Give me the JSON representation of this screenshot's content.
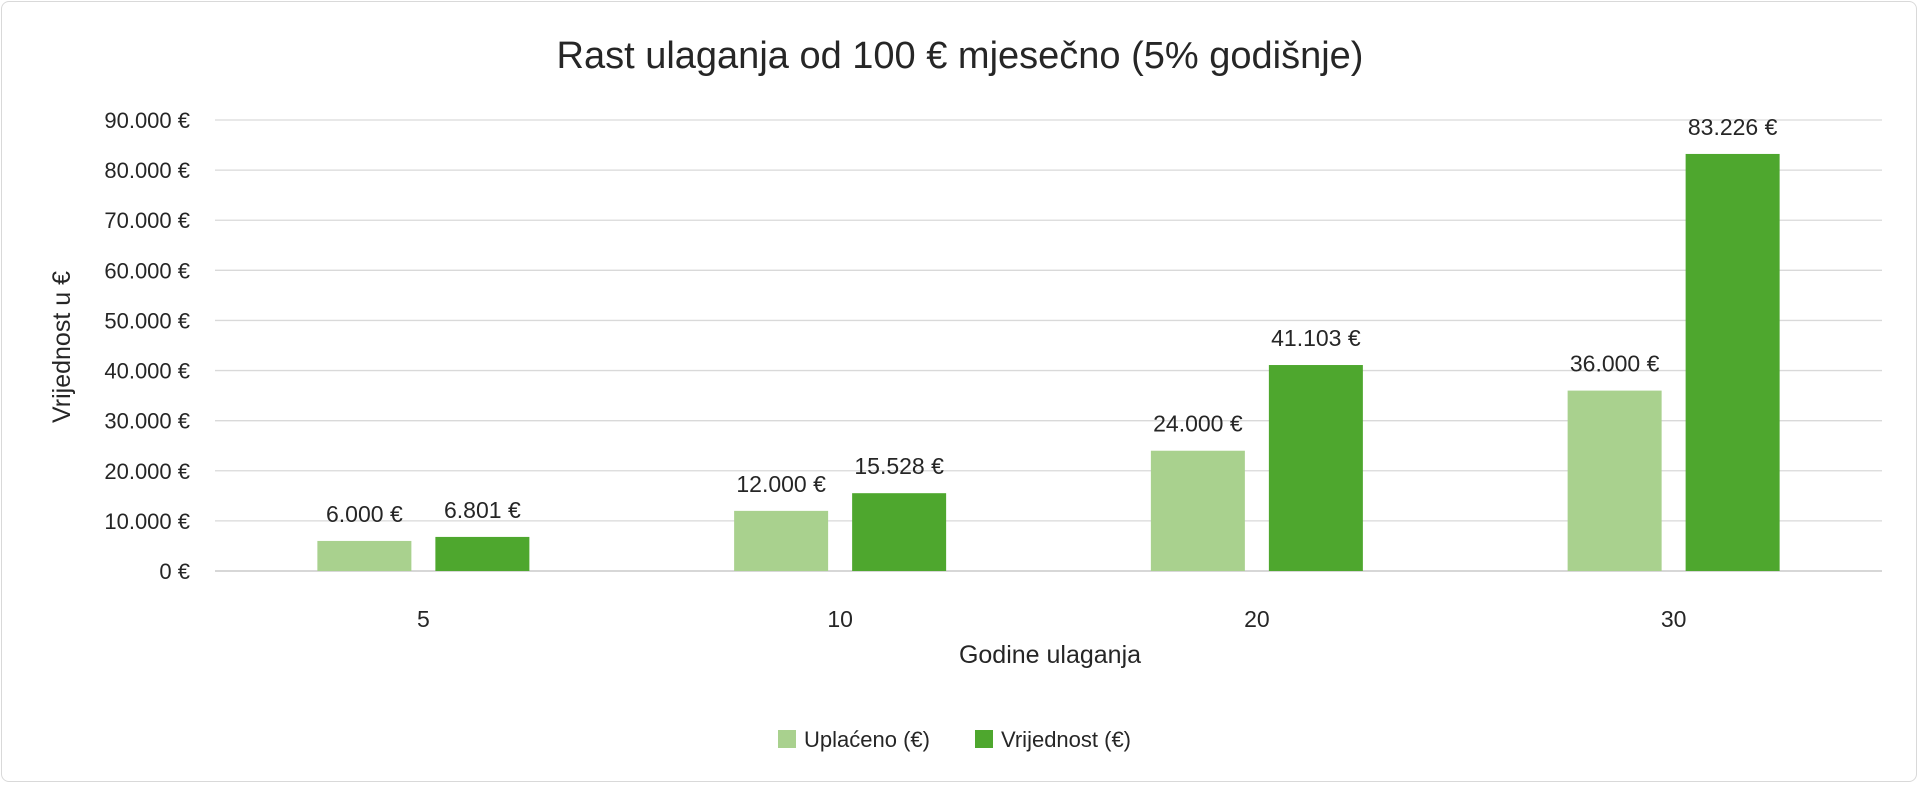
{
  "chart_data": {
    "type": "bar",
    "title": "Rast ulaganja od 100 € mjesečno (5% godišnje)",
    "xlabel": "Godine ulaganja",
    "ylabel": "Vrijednost u €",
    "categories": [
      "5",
      "10",
      "20",
      "30"
    ],
    "series": [
      {
        "name": "Uplaćeno (€)",
        "color": "#a9d18e",
        "values": [
          6000,
          12000,
          24000,
          36000
        ],
        "labels": [
          "6.000 €",
          "12.000 €",
          "24.000 €",
          "36.000 €"
        ]
      },
      {
        "name": "Vrijednost (€)",
        "color": "#4ea72e",
        "values": [
          6801,
          15528,
          41103,
          83226
        ],
        "labels": [
          "6.801 €",
          "15.528 €",
          "41.103 €",
          "83.226 €"
        ]
      }
    ],
    "ylim": [
      0,
      90000
    ],
    "yticks": [
      {
        "value": 0,
        "label": "0 €"
      },
      {
        "value": 10000,
        "label": "10.000 €"
      },
      {
        "value": 20000,
        "label": "20.000 €"
      },
      {
        "value": 30000,
        "label": "30.000 €"
      },
      {
        "value": 40000,
        "label": "40.000 €"
      },
      {
        "value": 50000,
        "label": "50.000 €"
      },
      {
        "value": 60000,
        "label": "60.000 €"
      },
      {
        "value": 70000,
        "label": "70.000 €"
      },
      {
        "value": 80000,
        "label": "80.000 €"
      },
      {
        "value": 90000,
        "label": "90.000 €"
      }
    ],
    "grid": true,
    "legend_position": "bottom"
  }
}
